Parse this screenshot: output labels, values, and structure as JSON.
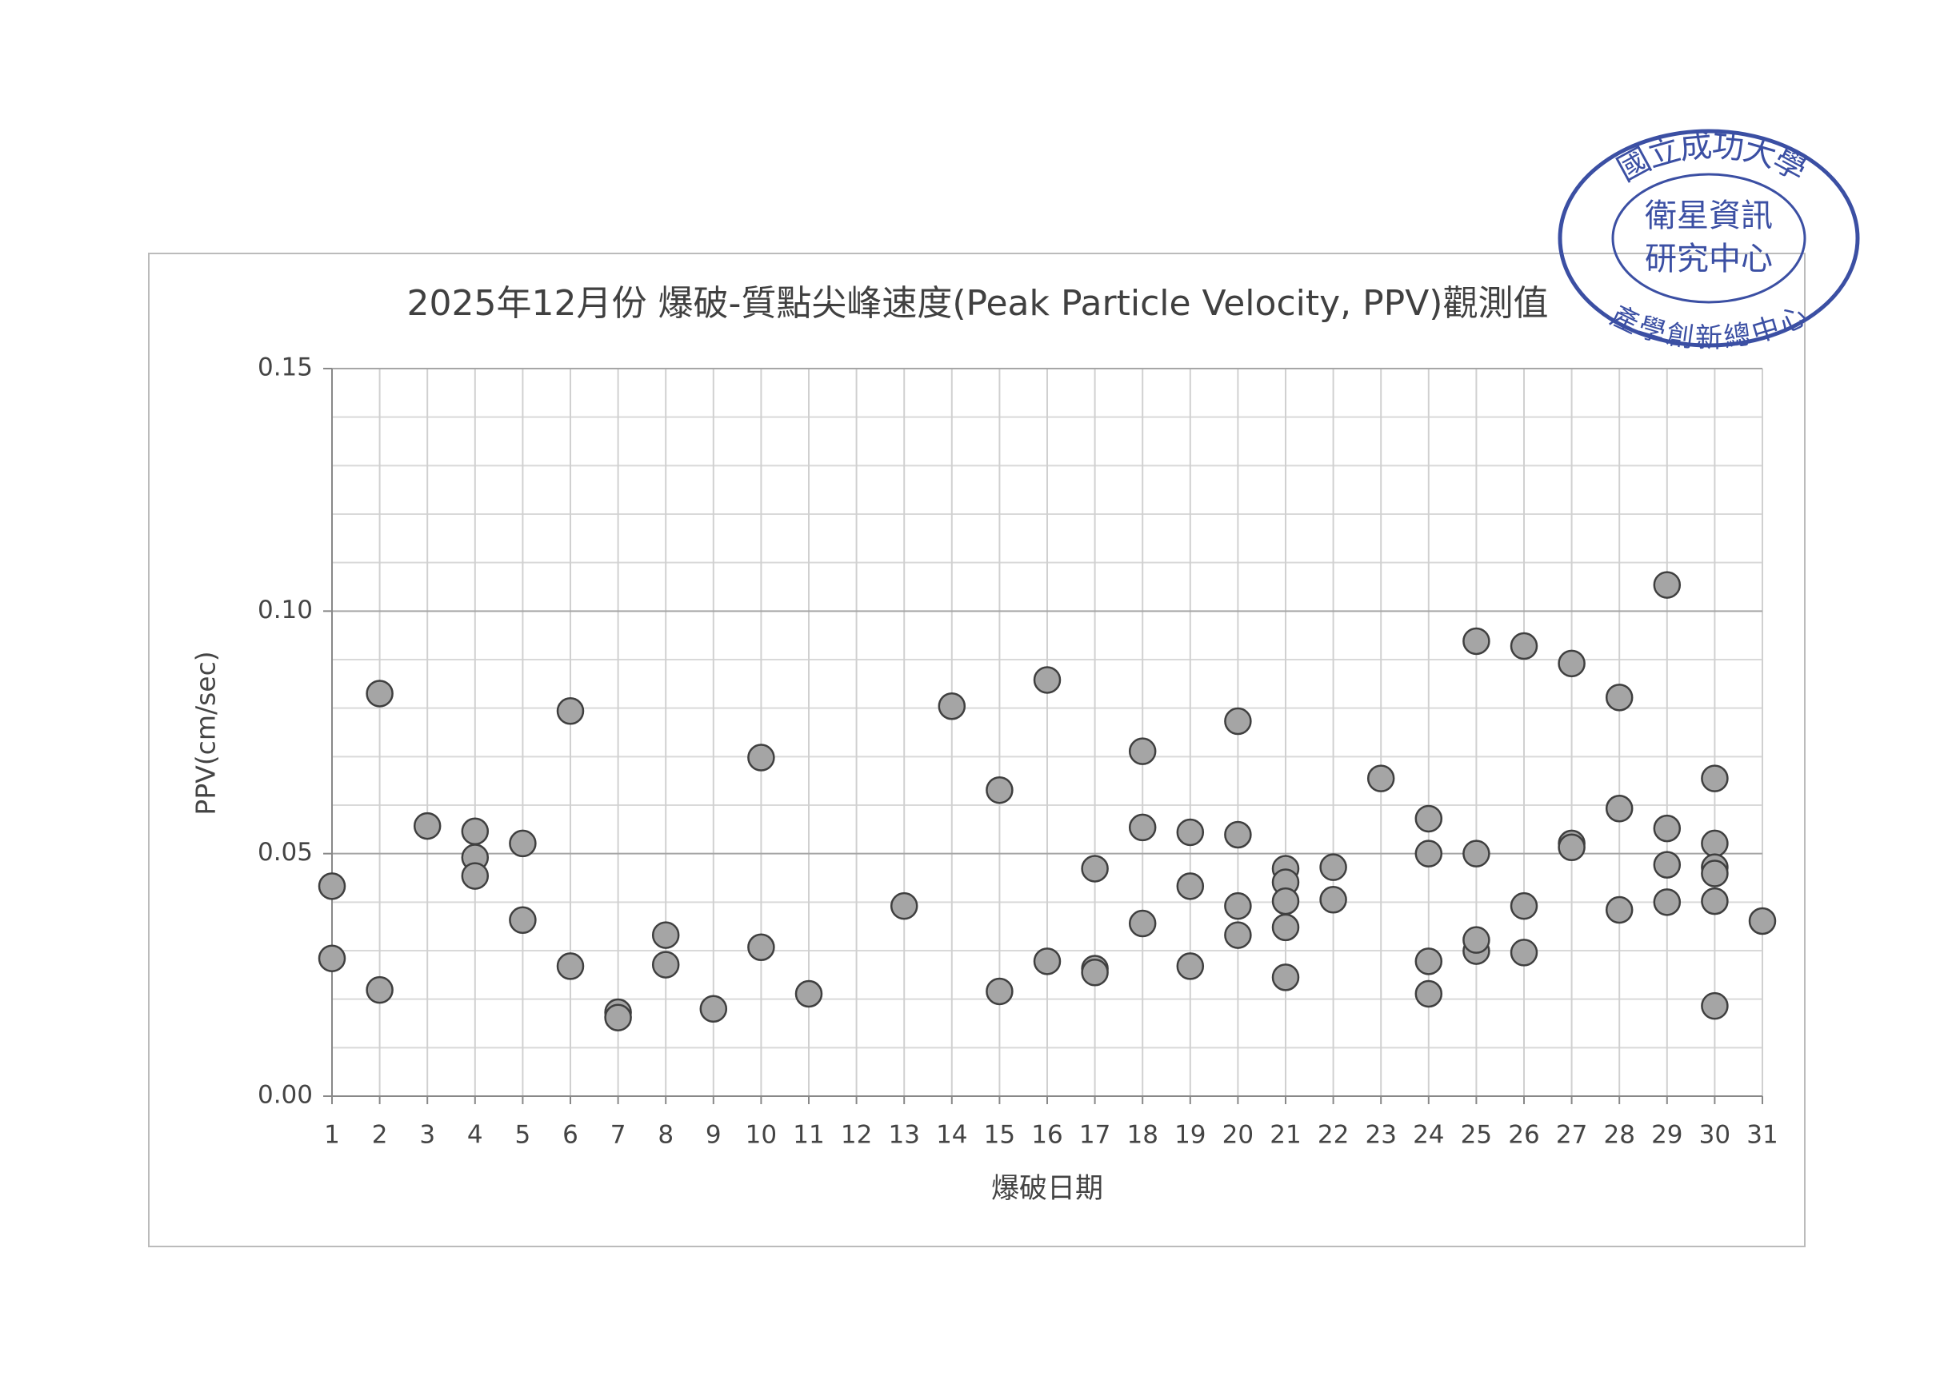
{
  "chart_data": {
    "type": "scatter",
    "title": "2025年12月份 爆破-質點尖峰速度(Peak Particle Velocity, PPV)觀測值",
    "xlabel": "爆破日期",
    "ylabel": "PPV(cm/sec)",
    "x": [
      1,
      1,
      2,
      2,
      3,
      4,
      4,
      4,
      5,
      5,
      6,
      6,
      7,
      7,
      8,
      8,
      9,
      10,
      10,
      11,
      13,
      14,
      15,
      15,
      16,
      16,
      17,
      17,
      17,
      18,
      18,
      18,
      19,
      19,
      19,
      20,
      20,
      20,
      20,
      21,
      21,
      21,
      21,
      21,
      22,
      22,
      23,
      24,
      24,
      24,
      24,
      25,
      25,
      25,
      25,
      26,
      26,
      26,
      27,
      27,
      27,
      28,
      28,
      28,
      29,
      29,
      29,
      29,
      30,
      30,
      30,
      30,
      30,
      30,
      31
    ],
    "values": [
      0.0433,
      0.0284,
      0.083,
      0.0219,
      0.0557,
      0.0546,
      0.0492,
      0.0454,
      0.0521,
      0.0363,
      0.0794,
      0.0268,
      0.0173,
      0.0162,
      0.0332,
      0.0271,
      0.018,
      0.0698,
      0.0307,
      0.0211,
      0.0392,
      0.0804,
      0.0631,
      0.0216,
      0.0858,
      0.0278,
      0.0469,
      0.0263,
      0.0255,
      0.0711,
      0.0554,
      0.0356,
      0.0544,
      0.0433,
      0.0268,
      0.0773,
      0.0539,
      0.0392,
      0.0332,
      0.0469,
      0.0441,
      0.0402,
      0.0348,
      0.0245,
      0.0472,
      0.0405,
      0.0655,
      0.0572,
      0.05,
      0.0278,
      0.0211,
      0.0938,
      0.05,
      0.0299,
      0.0322,
      0.0928,
      0.0392,
      0.0296,
      0.0892,
      0.0521,
      0.0513,
      0.0822,
      0.0593,
      0.0384,
      0.1054,
      0.0552,
      0.0477,
      0.04,
      0.0655,
      0.0521,
      0.0472,
      0.0459,
      0.0402,
      0.0186,
      0.0361
    ],
    "color": "#a5a5a5",
    "xlim": [
      1,
      31
    ],
    "xticks": [
      1,
      2,
      3,
      4,
      5,
      6,
      7,
      8,
      9,
      10,
      11,
      12,
      13,
      14,
      15,
      16,
      17,
      18,
      19,
      20,
      21,
      22,
      23,
      24,
      25,
      26,
      27,
      28,
      29,
      30,
      31
    ],
    "ylim": [
      0,
      0.15
    ],
    "yticks": [
      {
        "value": 0,
        "label": "0.00"
      },
      {
        "value": 0.05,
        "label": "0.05"
      },
      {
        "value": 0.1,
        "label": "0.10"
      },
      {
        "value": 0.15,
        "label": "0.15"
      }
    ],
    "minor_yticks": [
      0.01,
      0.02,
      0.03,
      0.04,
      0.06,
      0.07,
      0.08,
      0.09,
      0.11,
      0.12,
      0.13,
      0.14
    ],
    "grid": true
  },
  "stamp": {
    "outer_top": "國立成功大學",
    "inner_line1": "衛星資訊",
    "inner_line2": "研究中心",
    "outer_bottom": "產學創新總中心"
  }
}
